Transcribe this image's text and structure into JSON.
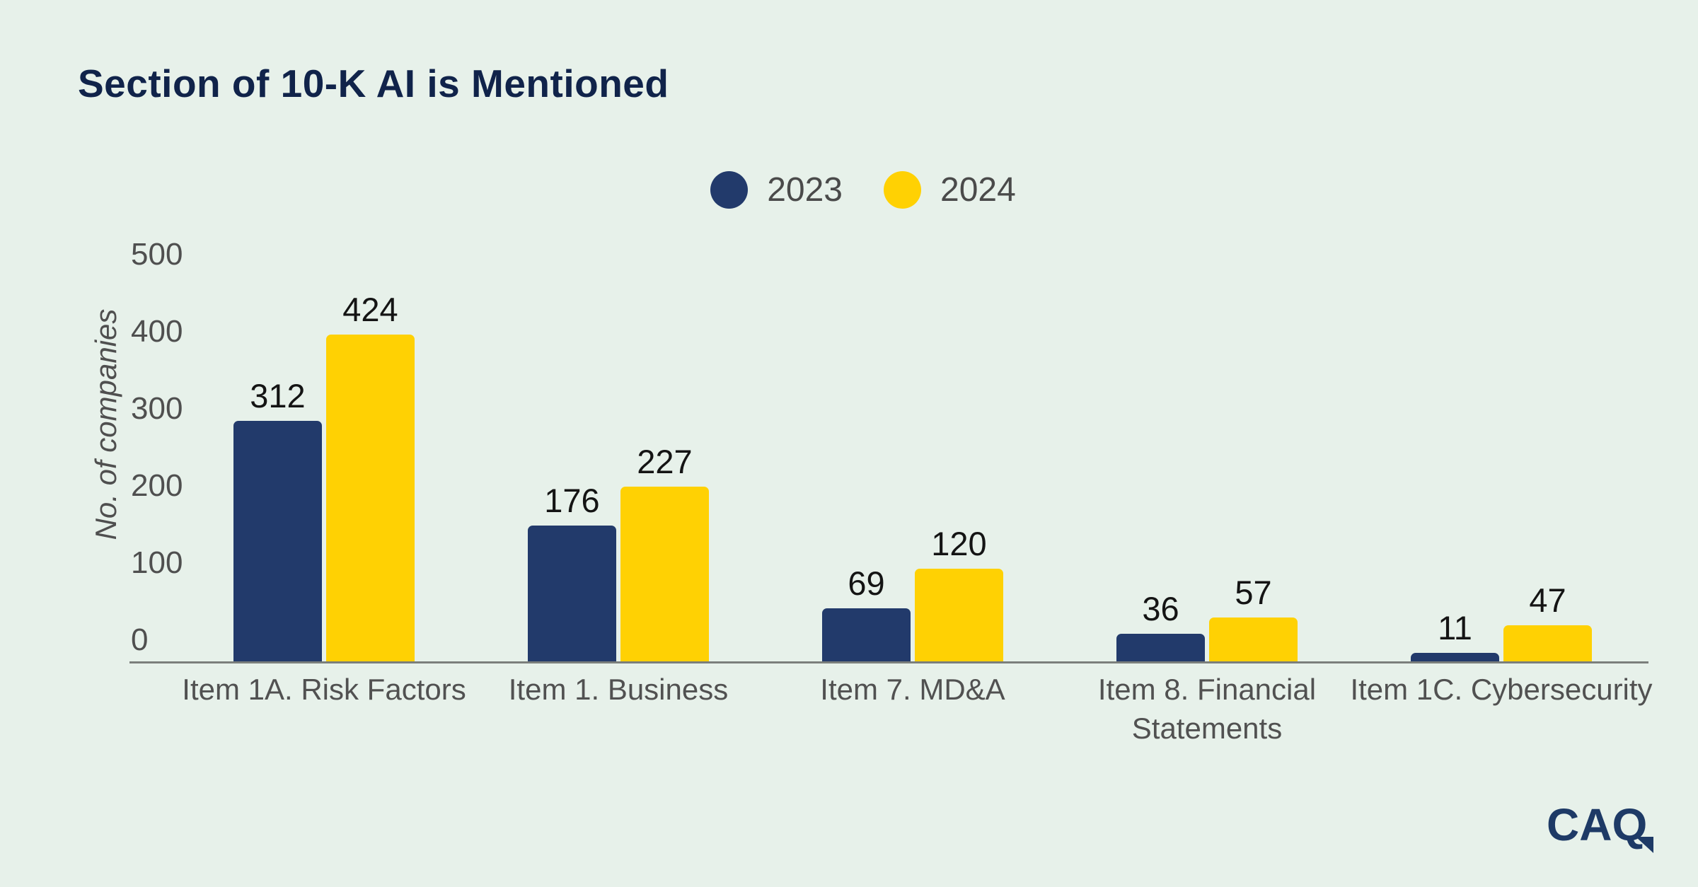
{
  "title": "Section of 10-K AI is Mentioned",
  "branding": {
    "logo_text": "CAQ",
    "logo_color": "#1E3A66"
  },
  "colors": {
    "background": "#E7F1EA",
    "title": "#10234A",
    "axis_line": "#7B7F7C",
    "tick_text": "#4F4F4F",
    "category_text": "#515151",
    "value_text": "#141414",
    "legend_text": "#4A4A4A",
    "series_2023": "#223A6B",
    "series_2024": "#FFD103"
  },
  "chart_data": {
    "type": "bar",
    "title": "Section of 10-K AI is Mentioned",
    "categories": [
      "Item 1A. Risk Factors",
      "Item 1. Business",
      "Item 7. MD&A",
      "Item 8. Financial Statements",
      "Item 1C. Cybersecurity"
    ],
    "category_display": [
      "Item 1A. Risk Factors",
      "Item 1. Business",
      "Item 7. MD&A",
      "Item 8. Financial\nStatements",
      "Item 1C. Cybersecurity"
    ],
    "series": [
      {
        "name": "2023",
        "color": "#223A6B",
        "values": [
          312,
          176,
          69,
          36,
          11
        ]
      },
      {
        "name": "2024",
        "color": "#FFD103",
        "values": [
          424,
          227,
          120,
          57,
          47
        ]
      }
    ],
    "xlabel": "",
    "ylabel": "No. of companies",
    "yticks": [
      0,
      100,
      200,
      300,
      400,
      500
    ],
    "ylim": [
      0,
      500
    ],
    "grid": false,
    "legend_position": "top-center",
    "value_labels": true
  }
}
